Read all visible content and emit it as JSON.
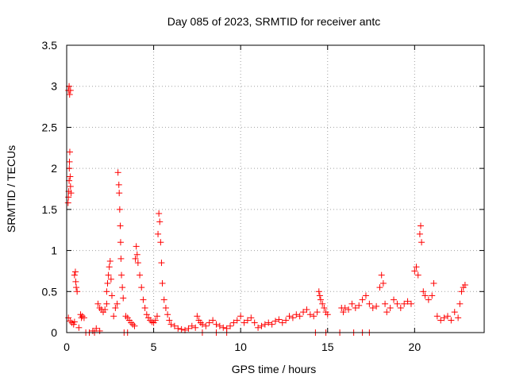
{
  "chart_data": {
    "type": "scatter",
    "title": "Day 085 of 2023, SRMTID for receiver antc",
    "xlabel": "GPS time / hours",
    "ylabel": "SRMTID / TECUs",
    "xlim": [
      0,
      24
    ],
    "ylim": [
      0,
      3.5
    ],
    "xticks": [
      "0",
      "5",
      "10",
      "15",
      "20"
    ],
    "xtick_values": [
      0,
      5,
      10,
      15,
      20
    ],
    "yticks": [
      "0",
      "0.5",
      "1",
      "1.5",
      "2",
      "2.5",
      "3",
      "3.5"
    ],
    "ytick_values": [
      0,
      0.5,
      1,
      1.5,
      2,
      2.5,
      3,
      3.5
    ],
    "grid": true,
    "marker": "+",
    "series": [
      {
        "name": "SRMTID",
        "color": "#ff0000",
        "points": [
          [
            0.08,
            1.58
          ],
          [
            0.1,
            1.65
          ],
          [
            0.12,
            1.72
          ],
          [
            0.14,
            1.85
          ],
          [
            0.15,
            2.0
          ],
          [
            0.16,
            2.08
          ],
          [
            0.18,
            2.2
          ],
          [
            0.2,
            1.9
          ],
          [
            0.22,
            1.78
          ],
          [
            0.25,
            1.7
          ],
          [
            0.1,
            2.95
          ],
          [
            0.14,
            3.0
          ],
          [
            0.17,
            2.9
          ],
          [
            0.22,
            2.95
          ],
          [
            0.1,
            0.18
          ],
          [
            0.2,
            0.14
          ],
          [
            0.3,
            0.12
          ],
          [
            0.4,
            0.1
          ],
          [
            0.45,
            0.13
          ],
          [
            0.45,
            0.7
          ],
          [
            0.5,
            0.74
          ],
          [
            0.52,
            0.62
          ],
          [
            0.55,
            0.55
          ],
          [
            0.6,
            0.5
          ],
          [
            0.7,
            0.06
          ],
          [
            0.8,
            0.22
          ],
          [
            0.85,
            0.18
          ],
          [
            0.9,
            0.2
          ],
          [
            1.0,
            0.18
          ],
          [
            1.5,
            0.02
          ],
          [
            1.7,
            0.05
          ],
          [
            1.9,
            0.02
          ],
          [
            1.8,
            0.35
          ],
          [
            1.9,
            0.3
          ],
          [
            2.0,
            0.28
          ],
          [
            2.1,
            0.25
          ],
          [
            2.2,
            0.28
          ],
          [
            2.3,
            0.35
          ],
          [
            2.3,
            0.5
          ],
          [
            2.35,
            0.6
          ],
          [
            2.4,
            0.7
          ],
          [
            2.45,
            0.8
          ],
          [
            2.5,
            0.87
          ],
          [
            2.55,
            0.65
          ],
          [
            2.6,
            0.45
          ],
          [
            2.7,
            0.2
          ],
          [
            2.8,
            0.3
          ],
          [
            2.9,
            0.35
          ],
          [
            2.95,
            1.95
          ],
          [
            3.0,
            1.8
          ],
          [
            3.02,
            1.7
          ],
          [
            3.05,
            1.5
          ],
          [
            3.08,
            1.3
          ],
          [
            3.1,
            1.1
          ],
          [
            3.12,
            0.9
          ],
          [
            3.15,
            0.7
          ],
          [
            3.2,
            0.55
          ],
          [
            3.25,
            0.42
          ],
          [
            3.4,
            0.2
          ],
          [
            3.5,
            0.18
          ],
          [
            3.6,
            0.15
          ],
          [
            3.7,
            0.12
          ],
          [
            3.8,
            0.1
          ],
          [
            3.9,
            0.08
          ],
          [
            3.95,
            0.9
          ],
          [
            4.0,
            1.05
          ],
          [
            4.05,
            0.95
          ],
          [
            4.1,
            0.85
          ],
          [
            4.2,
            0.7
          ],
          [
            4.3,
            0.55
          ],
          [
            4.4,
            0.4
          ],
          [
            4.5,
            0.3
          ],
          [
            4.6,
            0.22
          ],
          [
            4.7,
            0.18
          ],
          [
            4.8,
            0.15
          ],
          [
            4.9,
            0.13
          ],
          [
            5.0,
            0.12
          ],
          [
            5.1,
            0.15
          ],
          [
            5.2,
            0.2
          ],
          [
            5.25,
            1.2
          ],
          [
            5.3,
            1.45
          ],
          [
            5.35,
            1.35
          ],
          [
            5.4,
            1.1
          ],
          [
            5.45,
            0.85
          ],
          [
            5.5,
            0.6
          ],
          [
            5.6,
            0.4
          ],
          [
            5.7,
            0.3
          ],
          [
            5.8,
            0.22
          ],
          [
            5.9,
            0.15
          ],
          [
            6.0,
            0.1
          ],
          [
            6.2,
            0.08
          ],
          [
            6.4,
            0.05
          ],
          [
            6.6,
            0.04
          ],
          [
            6.8,
            0.03
          ],
          [
            7.0,
            0.05
          ],
          [
            7.2,
            0.08
          ],
          [
            7.4,
            0.06
          ],
          [
            7.5,
            0.2
          ],
          [
            7.6,
            0.15
          ],
          [
            7.7,
            0.12
          ],
          [
            7.8,
            0.1
          ],
          [
            8.0,
            0.08
          ],
          [
            8.2,
            0.12
          ],
          [
            8.4,
            0.15
          ],
          [
            8.6,
            0.1
          ],
          [
            8.8,
            0.08
          ],
          [
            9.0,
            0.06
          ],
          [
            9.2,
            0.05
          ],
          [
            9.4,
            0.08
          ],
          [
            9.6,
            0.12
          ],
          [
            9.8,
            0.15
          ],
          [
            10.0,
            0.2
          ],
          [
            10.2,
            0.12
          ],
          [
            10.4,
            0.15
          ],
          [
            10.6,
            0.18
          ],
          [
            10.8,
            0.12
          ],
          [
            11.0,
            0.06
          ],
          [
            11.2,
            0.08
          ],
          [
            11.4,
            0.1
          ],
          [
            11.6,
            0.12
          ],
          [
            11.8,
            0.1
          ],
          [
            12.0,
            0.14
          ],
          [
            12.2,
            0.16
          ],
          [
            12.4,
            0.12
          ],
          [
            12.6,
            0.15
          ],
          [
            12.8,
            0.2
          ],
          [
            13.0,
            0.18
          ],
          [
            13.2,
            0.22
          ],
          [
            13.4,
            0.2
          ],
          [
            13.6,
            0.25
          ],
          [
            13.8,
            0.28
          ],
          [
            14.0,
            0.22
          ],
          [
            14.2,
            0.2
          ],
          [
            14.4,
            0.25
          ],
          [
            14.5,
            0.5
          ],
          [
            14.55,
            0.45
          ],
          [
            14.6,
            0.4
          ],
          [
            14.7,
            0.35
          ],
          [
            14.8,
            0.3
          ],
          [
            14.9,
            0.25
          ],
          [
            15.0,
            0.22
          ],
          [
            15.8,
            0.3
          ],
          [
            15.9,
            0.25
          ],
          [
            16.0,
            0.3
          ],
          [
            16.2,
            0.28
          ],
          [
            16.4,
            0.35
          ],
          [
            16.6,
            0.3
          ],
          [
            16.8,
            0.33
          ],
          [
            17.0,
            0.4
          ],
          [
            17.2,
            0.45
          ],
          [
            17.4,
            0.35
          ],
          [
            17.6,
            0.3
          ],
          [
            17.8,
            0.32
          ],
          [
            18.0,
            0.55
          ],
          [
            18.1,
            0.7
          ],
          [
            18.2,
            0.6
          ],
          [
            18.3,
            0.35
          ],
          [
            18.4,
            0.25
          ],
          [
            18.6,
            0.3
          ],
          [
            18.8,
            0.4
          ],
          [
            19.0,
            0.35
          ],
          [
            19.2,
            0.3
          ],
          [
            19.4,
            0.35
          ],
          [
            19.6,
            0.38
          ],
          [
            19.8,
            0.35
          ],
          [
            20.0,
            0.75
          ],
          [
            20.1,
            0.8
          ],
          [
            20.2,
            0.7
          ],
          [
            20.3,
            1.2
          ],
          [
            20.35,
            1.3
          ],
          [
            20.4,
            1.1
          ],
          [
            20.5,
            0.5
          ],
          [
            20.6,
            0.45
          ],
          [
            20.8,
            0.4
          ],
          [
            21.0,
            0.45
          ],
          [
            21.1,
            0.6
          ],
          [
            21.3,
            0.2
          ],
          [
            21.5,
            0.15
          ],
          [
            21.7,
            0.18
          ],
          [
            21.9,
            0.2
          ],
          [
            22.1,
            0.15
          ],
          [
            22.3,
            0.25
          ],
          [
            22.5,
            0.18
          ],
          [
            22.6,
            0.35
          ],
          [
            22.7,
            0.5
          ],
          [
            22.8,
            0.55
          ],
          [
            22.9,
            0.58
          ],
          [
            1.1,
            0.0
          ],
          [
            1.3,
            0.0
          ],
          [
            1.6,
            0.0
          ],
          [
            3.3,
            0.0
          ],
          [
            3.5,
            0.0
          ],
          [
            7.8,
            0.0
          ],
          [
            8.6,
            0.0
          ],
          [
            9.2,
            0.0
          ],
          [
            14.3,
            0.0
          ],
          [
            14.9,
            0.0
          ],
          [
            15.7,
            0.0
          ],
          [
            16.5,
            0.0
          ],
          [
            17.0,
            0.0
          ],
          [
            17.4,
            0.0
          ]
        ]
      }
    ]
  }
}
